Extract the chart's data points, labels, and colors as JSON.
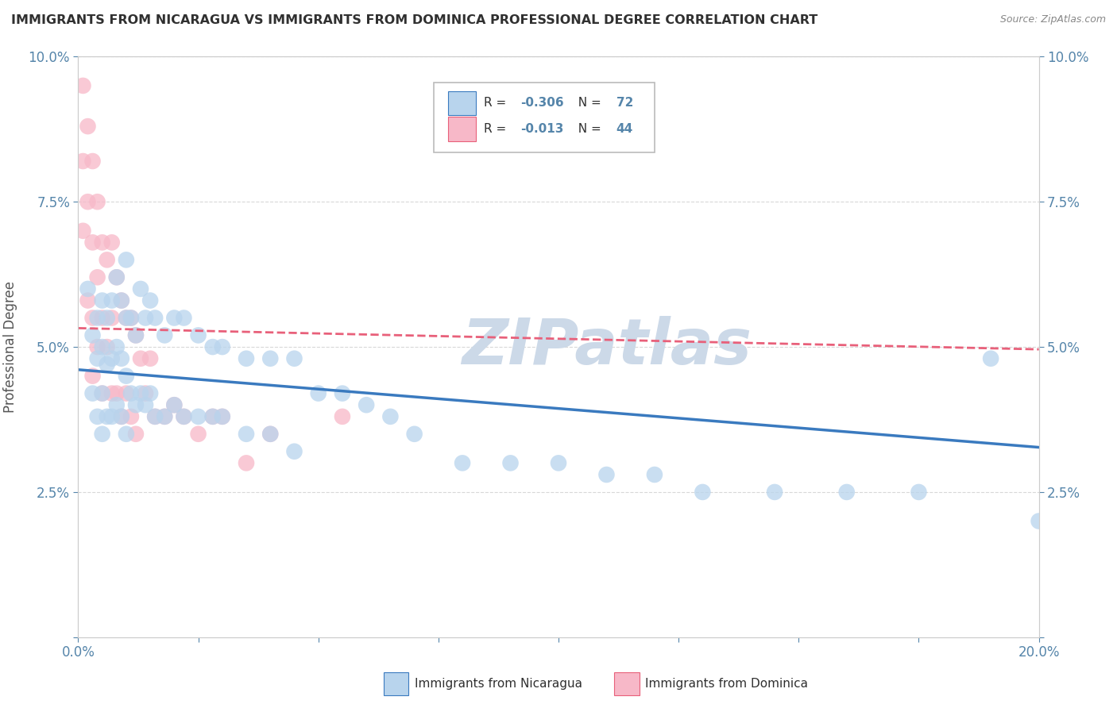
{
  "title": "IMMIGRANTS FROM NICARAGUA VS IMMIGRANTS FROM DOMINICA PROFESSIONAL DEGREE CORRELATION CHART",
  "source": "Source: ZipAtlas.com",
  "ylabel": "Professional Degree",
  "xlim": [
    0.0,
    0.2
  ],
  "ylim": [
    0.0,
    0.1
  ],
  "nicaragua_R": -0.306,
  "nicaragua_N": 72,
  "dominica_R": -0.013,
  "dominica_N": 44,
  "nicaragua_color": "#b8d4ed",
  "dominica_color": "#f7b8c8",
  "nicaragua_line_color": "#3a7abf",
  "dominica_line_color": "#e8607a",
  "background_color": "#ffffff",
  "grid_color": "#d8d8d8",
  "watermark": "ZIPatlas",
  "watermark_color": "#ccd9e8",
  "title_color": "#303030",
  "axis_label_color": "#5585aa",
  "tick_label_color": "#5585aa",
  "nicaragua_points_x": [
    0.002,
    0.003,
    0.003,
    0.004,
    0.004,
    0.004,
    0.005,
    0.005,
    0.005,
    0.005,
    0.006,
    0.006,
    0.006,
    0.007,
    0.007,
    0.007,
    0.008,
    0.008,
    0.008,
    0.009,
    0.009,
    0.009,
    0.01,
    0.01,
    0.01,
    0.01,
    0.011,
    0.011,
    0.012,
    0.012,
    0.013,
    0.013,
    0.014,
    0.014,
    0.015,
    0.015,
    0.016,
    0.016,
    0.018,
    0.018,
    0.02,
    0.02,
    0.022,
    0.022,
    0.025,
    0.025,
    0.028,
    0.028,
    0.03,
    0.03,
    0.035,
    0.035,
    0.04,
    0.04,
    0.045,
    0.045,
    0.05,
    0.055,
    0.06,
    0.065,
    0.07,
    0.08,
    0.09,
    0.1,
    0.11,
    0.12,
    0.13,
    0.145,
    0.16,
    0.175,
    0.19,
    0.2
  ],
  "nicaragua_points_y": [
    0.06,
    0.052,
    0.042,
    0.055,
    0.048,
    0.038,
    0.058,
    0.05,
    0.042,
    0.035,
    0.055,
    0.047,
    0.038,
    0.058,
    0.048,
    0.038,
    0.062,
    0.05,
    0.04,
    0.058,
    0.048,
    0.038,
    0.065,
    0.055,
    0.045,
    0.035,
    0.055,
    0.042,
    0.052,
    0.04,
    0.06,
    0.042,
    0.055,
    0.04,
    0.058,
    0.042,
    0.055,
    0.038,
    0.052,
    0.038,
    0.055,
    0.04,
    0.055,
    0.038,
    0.052,
    0.038,
    0.05,
    0.038,
    0.05,
    0.038,
    0.048,
    0.035,
    0.048,
    0.035,
    0.048,
    0.032,
    0.042,
    0.042,
    0.04,
    0.038,
    0.035,
    0.03,
    0.03,
    0.03,
    0.028,
    0.028,
    0.025,
    0.025,
    0.025,
    0.025,
    0.048,
    0.02
  ],
  "dominica_points_x": [
    0.001,
    0.001,
    0.001,
    0.002,
    0.002,
    0.002,
    0.003,
    0.003,
    0.003,
    0.003,
    0.004,
    0.004,
    0.004,
    0.005,
    0.005,
    0.005,
    0.006,
    0.006,
    0.007,
    0.007,
    0.007,
    0.008,
    0.008,
    0.009,
    0.009,
    0.01,
    0.01,
    0.011,
    0.011,
    0.012,
    0.012,
    0.013,
    0.014,
    0.015,
    0.016,
    0.018,
    0.02,
    0.022,
    0.025,
    0.028,
    0.03,
    0.035,
    0.04,
    0.055
  ],
  "dominica_points_y": [
    0.095,
    0.082,
    0.07,
    0.088,
    0.075,
    0.058,
    0.082,
    0.068,
    0.055,
    0.045,
    0.075,
    0.062,
    0.05,
    0.068,
    0.055,
    0.042,
    0.065,
    0.05,
    0.068,
    0.055,
    0.042,
    0.062,
    0.042,
    0.058,
    0.038,
    0.055,
    0.042,
    0.055,
    0.038,
    0.052,
    0.035,
    0.048,
    0.042,
    0.048,
    0.038,
    0.038,
    0.04,
    0.038,
    0.035,
    0.038,
    0.038,
    0.03,
    0.035,
    0.038
  ]
}
